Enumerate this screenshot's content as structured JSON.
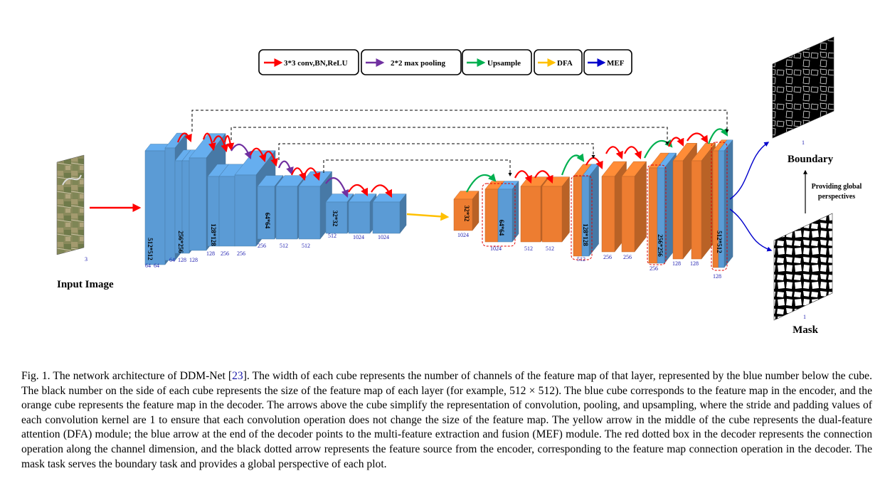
{
  "legend": {
    "items": [
      {
        "label": "3*3 conv,BN,ReLU",
        "color": "#ff0000"
      },
      {
        "label": "2*2 max pooling",
        "color": "#7030a0"
      },
      {
        "label": "Upsample",
        "color": "#00b050"
      },
      {
        "label": "DFA",
        "color": "#ffc000"
      },
      {
        "label": "MEF",
        "color": "#0000cc"
      }
    ]
  },
  "colors": {
    "encoder": "#5b9bd5",
    "decoder": "#ed7d31",
    "channel_text": "#2020b0"
  },
  "input": {
    "title": "Input Image",
    "channels": "3"
  },
  "outputs": {
    "boundary": {
      "title": "Boundary",
      "channels": "1"
    },
    "mask": {
      "title": "Mask",
      "channels": "1"
    },
    "relation": "Providing global perspectives"
  },
  "encoder": {
    "stage1": {
      "size": "512*512",
      "channels": [
        "64",
        "64"
      ]
    },
    "stage2": {
      "size": "256*256",
      "channels": [
        "64",
        "128",
        "128"
      ]
    },
    "stage3": {
      "size": "128*128",
      "channels": [
        "128",
        "256",
        "256"
      ]
    },
    "stage4": {
      "size": "64*64",
      "channels": [
        "256",
        "512",
        "512"
      ]
    },
    "stage5": {
      "size": "32*32",
      "channels": [
        "512",
        "1024",
        "1024"
      ]
    }
  },
  "decoder": {
    "stage1": {
      "size": "32*32",
      "channels": [
        "1024"
      ]
    },
    "stage2": {
      "size": "64*64",
      "channels": [
        "1024",
        "512",
        "512"
      ]
    },
    "stage3": {
      "size": "128*128",
      "channels": [
        "512",
        "256",
        "256"
      ]
    },
    "stage4": {
      "size": "256*256",
      "channels": [
        "256",
        "128",
        "128"
      ]
    },
    "stage5": {
      "size": "512*512",
      "channels": [
        "128"
      ]
    }
  },
  "caption": {
    "prefix": "Fig. 1.  The network architecture of DDM-Net [",
    "ref": "23",
    "body": "]. The width of each cube represents the number of channels of the feature map of that layer, represented by the blue number below the cube. The black number on the side of each cube represents the size of the feature map of each layer (for example, 512 × 512). The blue cube corresponds to the feature map in the encoder, and the orange cube represents the feature map in the decoder. The arrows above the cube simplify the representation of convolution, pooling, and upsampling, where the stride and padding values of each convolution kernel are 1 to ensure that each convolution operation does not change the size of the feature map. The yellow arrow in the middle of the cube represents the dual-feature attention (DFA) module; the blue arrow at the end of the decoder points to the multi-feature extraction and fusion (MEF) module. The red dotted box in the decoder represents the connection operation along the channel dimension, and the black dotted arrow represents the feature source from the encoder, corresponding to the feature map connection operation in the decoder. The mask task serves the boundary task and provides a global perspective of each plot."
  }
}
